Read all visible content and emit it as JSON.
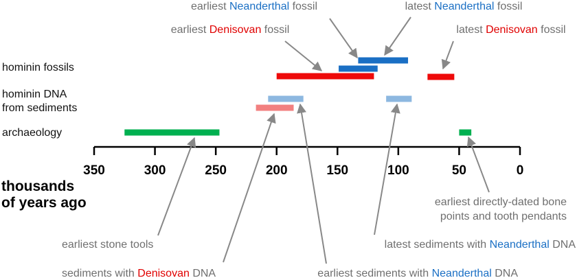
{
  "chart_data": {
    "type": "timeline",
    "xlim": [
      350,
      0
    ],
    "xticks": [
      350,
      300,
      250,
      200,
      150,
      100,
      50,
      0
    ],
    "xlabel": [
      "thousands",
      "of years ago"
    ],
    "rows": [
      {
        "label": [
          "hominin fossils"
        ],
        "bars": [
          {
            "start": 200,
            "end": 120,
            "color": "#ee0a0a"
          },
          {
            "start": 149,
            "end": 117,
            "color": "#1a6fc4"
          },
          {
            "start": 133,
            "end": 92,
            "color": "#1a6fc4"
          },
          {
            "start": 76,
            "end": 54,
            "color": "#ee0a0a"
          }
        ]
      },
      {
        "label": [
          "hominin DNA",
          "from sediments"
        ],
        "bars": [
          {
            "start": 207,
            "end": 178,
            "color": "#8db8e0"
          },
          {
            "start": 110,
            "end": 89,
            "color": "#8db8e0"
          },
          {
            "start": 217,
            "end": 186,
            "color": "#f28080"
          }
        ]
      },
      {
        "label": [
          "archaeology"
        ],
        "bars": [
          {
            "start": 325,
            "end": 247,
            "color": "#00b050"
          },
          {
            "start": 50,
            "end": 40,
            "color": "#00b050"
          }
        ]
      }
    ],
    "annotations": [
      {
        "lines": [
          [
            "earliest ",
            "Neanderthal",
            " fossil"
          ]
        ],
        "highlight_color": "#1a6fc4"
      },
      {
        "lines": [
          [
            "latest ",
            "Neanderthal",
            " fossil"
          ]
        ],
        "highlight_color": "#1a6fc4"
      },
      {
        "lines": [
          [
            "earliest ",
            "Denisovan",
            " fossil"
          ]
        ],
        "highlight_color": "#e00000"
      },
      {
        "lines": [
          [
            "latest ",
            "Denisovan",
            " fossil"
          ]
        ],
        "highlight_color": "#e00000"
      },
      {
        "lines": [
          [
            "earliest directly-dated bone"
          ],
          [
            "points and tooth pendants"
          ]
        ],
        "highlight_color": "#1a6fc4"
      },
      {
        "lines": [
          [
            "latest sediments with ",
            "Neanderthal",
            " DNA"
          ]
        ],
        "highlight_color": "#1a6fc4"
      },
      {
        "lines": [
          [
            "earliest stone tools"
          ]
        ],
        "highlight_color": "#1a6fc4"
      },
      {
        "lines": [
          [
            "sediments with ",
            "Denisovan",
            " DNA"
          ]
        ],
        "highlight_color": "#e00000"
      },
      {
        "lines": [
          [
            "earliest sediments with ",
            "Neanderthal",
            " DNA"
          ]
        ],
        "highlight_color": "#1a6fc4"
      }
    ]
  }
}
